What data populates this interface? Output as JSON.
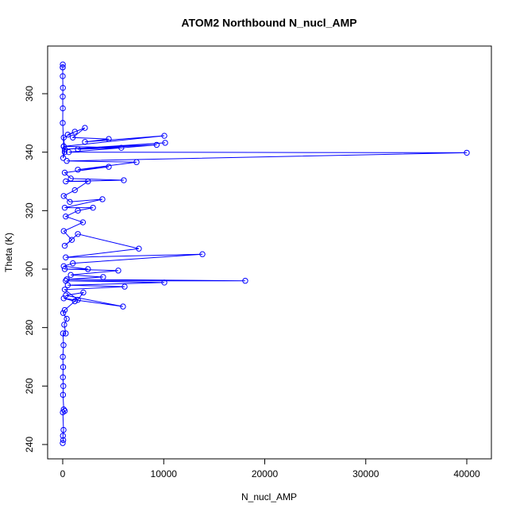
{
  "chart_data": {
    "type": "line",
    "title": "ATOM2 Northbound N_nucl_AMP",
    "x_label": "N_nucl_AMP",
    "y_label": "Theta (K)",
    "color": "#0000ff",
    "x": [
      0,
      50,
      20,
      80,
      10,
      200,
      100,
      30,
      60,
      20,
      40,
      10,
      80,
      30,
      300,
      150,
      400,
      50,
      200,
      1200,
      100,
      5970,
      300,
      2040,
      1500,
      200,
      6130,
      500,
      10060,
      300,
      18070,
      400,
      4000,
      800,
      5500,
      200,
      2500,
      100,
      1000,
      13830,
      300,
      7540,
      1500,
      200,
      900,
      100,
      2000,
      300,
      1500,
      3000,
      200,
      3930,
      700,
      100,
      1200,
      2500,
      300,
      6050,
      800,
      200,
      4560,
      1500,
      7310,
      400,
      40000,
      600,
      9300,
      200,
      10140,
      1500,
      5800,
      100,
      10060,
      2200,
      4560,
      1000,
      2200,
      500,
      1200,
      100,
      200,
      50,
      100,
      0,
      10,
      0,
      20,
      0,
      0,
      10,
      0
    ],
    "values": [
      240.5,
      241.5,
      243,
      245,
      251,
      251.5,
      252,
      257,
      260,
      263,
      266.5,
      270,
      274,
      278,
      278,
      281,
      283,
      285,
      286,
      289,
      290,
      287.2,
      291,
      292,
      289.5,
      293,
      294,
      294.5,
      295.4,
      296,
      296,
      296.5,
      297.3,
      298,
      299.5,
      300,
      300,
      301,
      302,
      305.1,
      304,
      307,
      312,
      308,
      310,
      313,
      316,
      318,
      320,
      321,
      321,
      323.9,
      323,
      325,
      327,
      330,
      330,
      330.4,
      331,
      333,
      335,
      334,
      336.6,
      337,
      339.8,
      340,
      342.5,
      341,
      343.2,
      341,
      341.5,
      342,
      345.6,
      343.5,
      344.5,
      345,
      348.3,
      346,
      347,
      345,
      340,
      338,
      342,
      350,
      355,
      359,
      362,
      366,
      369,
      370,
      369
    ],
    "xlim": [
      -1493,
      42436
    ],
    "ylim": [
      235.1,
      376.3
    ],
    "xticks": [
      0,
      10000,
      20000,
      30000,
      40000
    ],
    "yticks": [
      240,
      260,
      280,
      300,
      320,
      340,
      360
    ]
  }
}
